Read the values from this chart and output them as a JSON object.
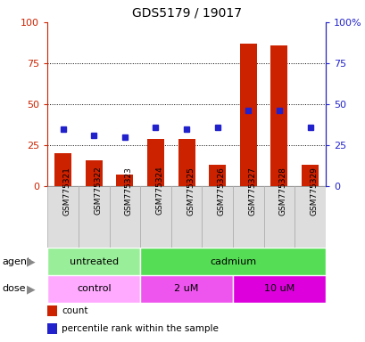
{
  "title": "GDS5179 / 19017",
  "samples": [
    "GSM775321",
    "GSM775322",
    "GSM775323",
    "GSM775324",
    "GSM775325",
    "GSM775326",
    "GSM775327",
    "GSM775328",
    "GSM775329"
  ],
  "counts": [
    20,
    16,
    7,
    29,
    29,
    13,
    87,
    86,
    13
  ],
  "percentile_ranks": [
    35,
    31,
    30,
    36,
    35,
    36,
    46,
    46,
    36
  ],
  "bar_color": "#CC2200",
  "dot_color": "#2222CC",
  "agent_groups": [
    {
      "label": "untreated",
      "start": 0,
      "end": 3,
      "color": "#99EE99"
    },
    {
      "label": "cadmium",
      "start": 3,
      "end": 9,
      "color": "#55DD55"
    }
  ],
  "dose_groups": [
    {
      "label": "control",
      "start": 0,
      "end": 3,
      "color": "#FFAAFF"
    },
    {
      "label": "2 uM",
      "start": 3,
      "end": 6,
      "color": "#EE66EE"
    },
    {
      "label": "10 uM",
      "start": 6,
      "end": 9,
      "color": "#DD22DD"
    }
  ],
  "left_axis_color": "#CC2200",
  "right_axis_color": "#2222CC",
  "ylim": [
    0,
    100
  ],
  "grid_lines": [
    25,
    50,
    75
  ],
  "legend_items": [
    {
      "label": "count",
      "color": "#CC2200"
    },
    {
      "label": "percentile rank within the sample",
      "color": "#2222CC"
    }
  ],
  "label_box_color": "#DDDDDD",
  "label_box_edge_color": "#AAAAAA",
  "row_label_agent": "agent",
  "row_label_dose": "dose"
}
